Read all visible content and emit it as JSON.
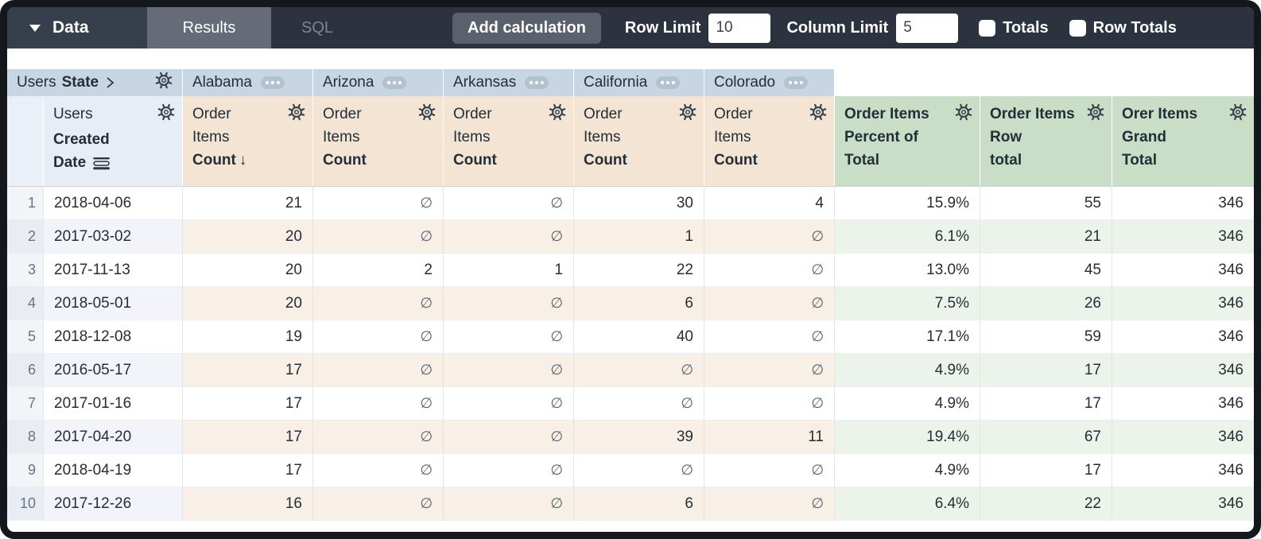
{
  "toolbar": {
    "data_label": "Data",
    "tabs": {
      "results": "Results",
      "sql": "SQL",
      "active_tab": "Results"
    },
    "add_calculation_label": "Add calculation",
    "row_limit_label": "Row Limit",
    "row_limit_value": "10",
    "column_limit_label": "Column Limit",
    "column_limit_value": "5",
    "totals_label": "Totals",
    "totals_checked": false,
    "row_totals_label": "Row Totals",
    "row_totals_checked": false
  },
  "table": {
    "pivot_field": {
      "prefix": "Users",
      "name": "State"
    },
    "pivot_values": [
      "Alabama",
      "Arizona",
      "Arkansas",
      "California",
      "Colorado"
    ],
    "dimension": {
      "line1": "Users",
      "line2": "Created",
      "line3": "Date"
    },
    "measure": {
      "line1": "Order",
      "line2": "Items",
      "line3": "Count"
    },
    "sorted_pivot_index": 0,
    "sort_arrow": "↓",
    "null_symbol": "∅",
    "calc_columns": [
      {
        "lines": [
          "Order Items",
          "Percent of",
          "Total"
        ]
      },
      {
        "lines": [
          "Order Items",
          "Row",
          "total"
        ]
      },
      {
        "lines": [
          "Orer Items",
          "Grand",
          "Total"
        ]
      }
    ],
    "rows": [
      {
        "index": "1",
        "date": "2018-04-06",
        "values": [
          "21",
          "∅",
          "∅",
          "30",
          "4"
        ],
        "percent": "15.9%",
        "row_total": "55",
        "grand_total": "346"
      },
      {
        "index": "2",
        "date": "2017-03-02",
        "values": [
          "20",
          "∅",
          "∅",
          "1",
          "∅"
        ],
        "percent": "6.1%",
        "row_total": "21",
        "grand_total": "346"
      },
      {
        "index": "3",
        "date": "2017-11-13",
        "values": [
          "20",
          "2",
          "1",
          "22",
          "∅"
        ],
        "percent": "13.0%",
        "row_total": "45",
        "grand_total": "346"
      },
      {
        "index": "4",
        "date": "2018-05-01",
        "values": [
          "20",
          "∅",
          "∅",
          "6",
          "∅"
        ],
        "percent": "7.5%",
        "row_total": "26",
        "grand_total": "346"
      },
      {
        "index": "5",
        "date": "2018-12-08",
        "values": [
          "19",
          "∅",
          "∅",
          "40",
          "∅"
        ],
        "percent": "17.1%",
        "row_total": "59",
        "grand_total": "346"
      },
      {
        "index": "6",
        "date": "2016-05-17",
        "values": [
          "17",
          "∅",
          "∅",
          "∅",
          "∅"
        ],
        "percent": "4.9%",
        "row_total": "17",
        "grand_total": "346"
      },
      {
        "index": "7",
        "date": "2017-01-16",
        "values": [
          "17",
          "∅",
          "∅",
          "∅",
          "∅"
        ],
        "percent": "4.9%",
        "row_total": "17",
        "grand_total": "346"
      },
      {
        "index": "8",
        "date": "2017-04-20",
        "values": [
          "17",
          "∅",
          "∅",
          "39",
          "11"
        ],
        "percent": "19.4%",
        "row_total": "67",
        "grand_total": "346"
      },
      {
        "index": "9",
        "date": "2018-04-19",
        "values": [
          "17",
          "∅",
          "∅",
          "∅",
          "∅"
        ],
        "percent": "4.9%",
        "row_total": "17",
        "grand_total": "346"
      },
      {
        "index": "10",
        "date": "2017-12-26",
        "values": [
          "16",
          "∅",
          "∅",
          "6",
          "∅"
        ],
        "percent": "6.4%",
        "row_total": "22",
        "grand_total": "346"
      }
    ]
  },
  "icons": {
    "data_caret": "caret-down",
    "header_gear": "gear",
    "pivot_menu": "ellipsis-pill",
    "pivot_expand": "chevron-right",
    "date_subtotal": "subtotal-bars"
  },
  "colors": {
    "topbar_bg": "#2c323e",
    "data_segment_bg": "#373e4c",
    "results_tab_bg": "#656b77",
    "sql_text": "#7e8591",
    "button_bg": "#5a606c",
    "pivot_header_bg": "#c8d5e2",
    "dimension_header_bg": "#e7edf5",
    "measure_header_bg": "#f3e4d3",
    "calc_header_bg": "#c9dec6",
    "even_row_measure_bg": "#f8efe7",
    "even_row_calc_bg": "#ecf3eb",
    "frame_border": "#14171c"
  }
}
